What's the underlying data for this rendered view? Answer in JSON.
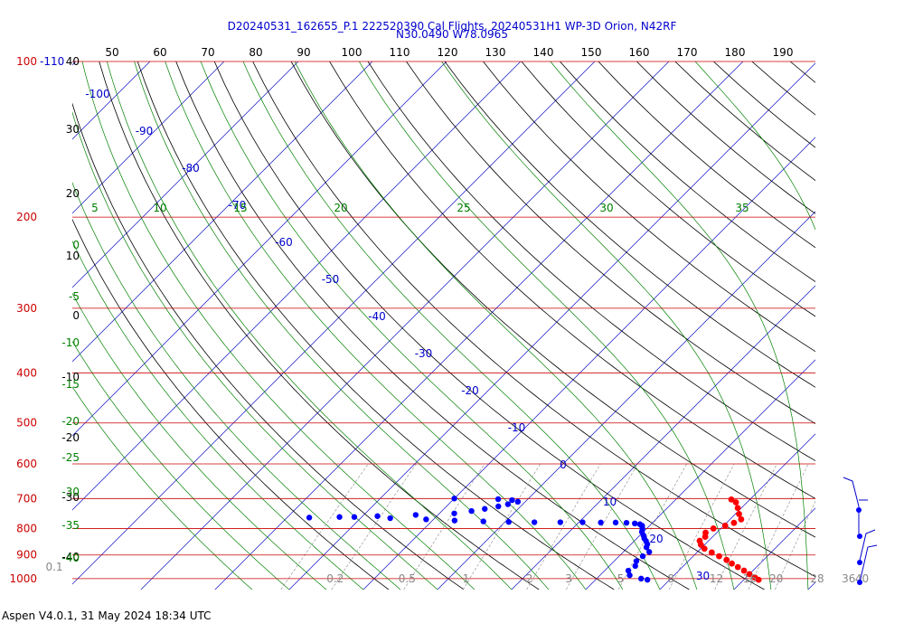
{
  "chart_data": {
    "type": "scatter",
    "title": "D20240531_162655_P.1 222520390 Cal Flights, 20240531H1 WP-3D Orion, N42RF",
    "subtitle": "N30.0490 W78.0965",
    "footer": "Aspen V4.0.1, 31 May 2024  18:34 UTC",
    "pressure_ticks": [
      {
        "p": 100,
        "label": "100"
      },
      {
        "p": 200,
        "label": "200"
      },
      {
        "p": 300,
        "label": "300"
      },
      {
        "p": 400,
        "label": "400"
      },
      {
        "p": 500,
        "label": "500"
      },
      {
        "p": 600,
        "label": "600"
      },
      {
        "p": 700,
        "label": "700"
      },
      {
        "p": 800,
        "label": "800"
      },
      {
        "p": 900,
        "label": "900"
      },
      {
        "p": 1000,
        "label": "1000"
      }
    ],
    "top_label": "-110",
    "top_temp_ticks": [
      "50",
      "60",
      "70",
      "80",
      "90",
      "100",
      "110",
      "120",
      "130",
      "140",
      "150",
      "160",
      "170",
      "180",
      "190"
    ],
    "left_temp_ticks": [
      {
        "t": 40,
        "label": "40"
      },
      {
        "t": 30,
        "label": "30"
      },
      {
        "t": 20,
        "label": "20"
      },
      {
        "t": 10,
        "label": "10"
      },
      {
        "t": 0,
        "label": "0"
      },
      {
        "t": -10,
        "label": "-10"
      },
      {
        "t": -20,
        "label": "-20"
      },
      {
        "t": -30,
        "label": "-30"
      },
      {
        "t": -40,
        "label": "-40"
      }
    ],
    "isotherm_labels": [
      {
        "t": -100,
        "label": "-100"
      },
      {
        "t": -90,
        "label": "-90"
      },
      {
        "t": -80,
        "label": "-80"
      },
      {
        "t": -70,
        "label": "-70"
      },
      {
        "t": -60,
        "label": "-60"
      },
      {
        "t": -50,
        "label": "-50"
      },
      {
        "t": -40,
        "label": "-40"
      },
      {
        "t": -30,
        "label": "-30"
      },
      {
        "t": -20,
        "label": "-20"
      },
      {
        "t": -10,
        "label": "-10"
      },
      {
        "t": 0,
        "label": "0"
      },
      {
        "t": 10,
        "label": "10"
      },
      {
        "t": 20,
        "label": "20"
      },
      {
        "t": 30,
        "label": "30"
      }
    ],
    "moist_adiabat_top_labels": [
      "5",
      "10",
      "15",
      "20",
      "25",
      "30",
      "35"
    ],
    "moist_adiabat_left_labels": [
      "0",
      "-5",
      "-10",
      "-15",
      "-20",
      "-25",
      "-30",
      "-35",
      "-40"
    ],
    "mixing_ratio_labels": [
      "0.1",
      "0.2",
      "0.5",
      "1",
      "2",
      "3",
      "5",
      "8",
      "12",
      "16",
      "20",
      "28",
      "36",
      "40"
    ],
    "temperature_profile": [
      {
        "p": 703,
        "t": 7.5
      },
      {
        "p": 712,
        "t": 8.5
      },
      {
        "p": 730,
        "t": 9.5
      },
      {
        "p": 750,
        "t": 10.5
      },
      {
        "p": 768,
        "t": 11.5
      },
      {
        "p": 780,
        "t": 11.0
      },
      {
        "p": 790,
        "t": 10.2
      },
      {
        "p": 800,
        "t": 9.0
      },
      {
        "p": 815,
        "t": 8.5
      },
      {
        "p": 830,
        "t": 9.0
      },
      {
        "p": 845,
        "t": 8.8
      },
      {
        "p": 860,
        "t": 9.5
      },
      {
        "p": 875,
        "t": 10.5
      },
      {
        "p": 890,
        "t": 12.0
      },
      {
        "p": 905,
        "t": 13.5
      },
      {
        "p": 920,
        "t": 15.0
      },
      {
        "p": 935,
        "t": 16.2
      },
      {
        "p": 950,
        "t": 17.5
      },
      {
        "p": 965,
        "t": 18.8
      },
      {
        "p": 980,
        "t": 20.0
      },
      {
        "p": 995,
        "t": 21.2
      },
      {
        "p": 1005,
        "t": 22.0
      }
    ],
    "dewpoint_profile": [
      {
        "p": 700,
        "t": -30
      },
      {
        "p": 702,
        "t": -24
      },
      {
        "p": 705,
        "t": -22
      },
      {
        "p": 710,
        "t": -21
      },
      {
        "p": 718,
        "t": -22
      },
      {
        "p": 725,
        "t": -23
      },
      {
        "p": 733,
        "t": -24.5
      },
      {
        "p": 740,
        "t": -26
      },
      {
        "p": 748,
        "t": -28
      },
      {
        "p": 753,
        "t": -33
      },
      {
        "p": 757,
        "t": -38
      },
      {
        "p": 760,
        "t": -43
      },
      {
        "p": 762,
        "t": -47
      },
      {
        "p": 760,
        "t": -41
      },
      {
        "p": 764,
        "t": -36
      },
      {
        "p": 768,
        "t": -31
      },
      {
        "p": 772,
        "t": -27
      },
      {
        "p": 775,
        "t": -23
      },
      {
        "p": 777,
        "t": -19.5
      },
      {
        "p": 778,
        "t": -16
      },
      {
        "p": 778,
        "t": -12.5
      },
      {
        "p": 778,
        "t": -9.5
      },
      {
        "p": 779,
        "t": -7
      },
      {
        "p": 779,
        "t": -5
      },
      {
        "p": 780,
        "t": -3.5
      },
      {
        "p": 782,
        "t": -2.3
      },
      {
        "p": 785,
        "t": -1.5
      },
      {
        "p": 790,
        "t": -1.0
      },
      {
        "p": 800,
        "t": -0.6
      },
      {
        "p": 812,
        "t": -0.2
      },
      {
        "p": 825,
        "t": 0.5
      },
      {
        "p": 836,
        "t": 1.0
      },
      {
        "p": 846,
        "t": 1.6
      },
      {
        "p": 858,
        "t": 2.2
      },
      {
        "p": 870,
        "t": 2.5
      },
      {
        "p": 888,
        "t": 3.5
      },
      {
        "p": 905,
        "t": 3.2
      },
      {
        "p": 925,
        "t": 3.0
      },
      {
        "p": 945,
        "t": 3.5
      },
      {
        "p": 965,
        "t": 3.2
      },
      {
        "p": 985,
        "t": 4.0
      },
      {
        "p": 1000,
        "t": 6.0
      },
      {
        "p": 1005,
        "t": 7.0
      }
    ]
  }
}
